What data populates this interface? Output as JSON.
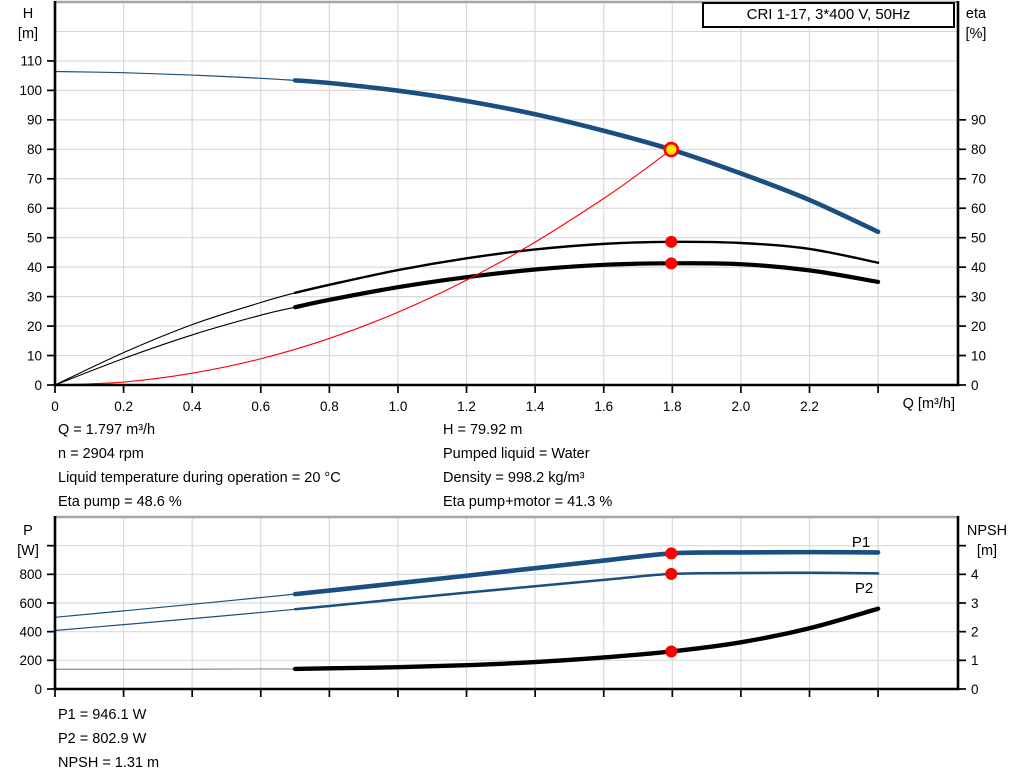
{
  "title_box": "CRI 1-17, 3*400 V, 50Hz",
  "colors": {
    "curve_blue": "#1B4F82",
    "label_blue": "#2B62A0",
    "red": "#FF0000",
    "yellow": "#FFE600",
    "black": "#000000",
    "grid": "#D9D9D9",
    "border_gray": "#A6A6A6",
    "thin_gray": "#8C8C8C"
  },
  "axis_titles": {
    "h1": "H",
    "h2": "[m]",
    "eta1": "eta",
    "eta2": "[%]",
    "q": "Q [m³/h]",
    "p1": "P",
    "p2": "[W]",
    "npsh1": "NPSH",
    "npsh2": "[m]"
  },
  "info": {
    "top_left": [
      "Q = 1.797 m³/h",
      "n = 2904 rpm",
      "Liquid temperature during operation = 20 °C",
      "Eta pump = 48.6 %"
    ],
    "top_right": [
      "H = 79.92 m",
      "Pumped liquid = Water",
      "Density = 998.2 kg/m³",
      "Eta pump+motor = 41.3 %"
    ],
    "bottom": [
      "P1 = 946.1 W",
      "P2 = 802.9 W",
      "NPSH = 1.31 m"
    ]
  },
  "chart_data": [
    {
      "type": "line",
      "title": "CRI 1-17, 3*400 V, 50Hz",
      "xlabel": "Q [m³/h]",
      "ylabel_left": "H [m]",
      "ylabel_right": "eta [%]",
      "xlim": [
        0,
        2.633
      ],
      "ylim_left": [
        0,
        130
      ],
      "ylim_right": [
        0,
        130
      ],
      "grid": true,
      "x_ticks": [
        0,
        0.2,
        0.4,
        0.6,
        0.8,
        1.0,
        1.2,
        1.4,
        1.6,
        1.8,
        2.0,
        2.2,
        2.4
      ],
      "x_tick_labels": [
        "0",
        "0.2",
        "0.4",
        "0.6",
        "0.8",
        "1.0",
        "1.2",
        "1.4",
        "1.6",
        "1.8",
        "2.0",
        "2.2",
        ""
      ],
      "grid_y": [
        10,
        20,
        30,
        40,
        50,
        60,
        70,
        80,
        90,
        100,
        110,
        120
      ],
      "y_ticks_left": {
        "values": [
          0,
          10,
          20,
          30,
          40,
          50,
          60,
          70,
          80,
          90,
          100,
          110
        ],
        "labels": [
          "0",
          "10",
          "20",
          "30",
          "40",
          "50",
          "60",
          "70",
          "80",
          "90",
          "100",
          "110"
        ]
      },
      "y_ticks_right": {
        "values": [
          0,
          10,
          20,
          30,
          40,
          50,
          60,
          70,
          80,
          90
        ],
        "labels": [
          "0",
          "10",
          "20",
          "30",
          "40",
          "50",
          "60",
          "70",
          "80",
          "90"
        ]
      },
      "series": [
        {
          "id": "h-curve",
          "name": "H",
          "axis": "left",
          "color": "#1B4F82",
          "thin_width": 1.2,
          "thick_width": 4.6,
          "thick_from": 0.7,
          "points": [
            [
              0,
              106.4
            ],
            [
              0.2,
              106.0
            ],
            [
              0.4,
              105.2
            ],
            [
              0.6,
              104.1
            ],
            [
              0.7,
              103.4
            ],
            [
              0.8,
              102.5
            ],
            [
              1.0,
              99.9
            ],
            [
              1.2,
              96.4
            ],
            [
              1.4,
              91.9
            ],
            [
              1.6,
              86.3
            ],
            [
              1.797,
              79.92
            ],
            [
              2.0,
              71.8
            ],
            [
              2.2,
              62.8
            ],
            [
              2.4,
              52.0
            ]
          ]
        },
        {
          "id": "eta-pump-curve",
          "name": "Eta pump",
          "axis": "left",
          "color": "#000000",
          "thin_width": 1.1,
          "thick_width": 2.4,
          "thick_from": 0.7,
          "points": [
            [
              0,
              0
            ],
            [
              0.2,
              11.0
            ],
            [
              0.4,
              20.5
            ],
            [
              0.6,
              28.0
            ],
            [
              0.7,
              31.3
            ],
            [
              0.8,
              34.0
            ],
            [
              1.0,
              39.0
            ],
            [
              1.2,
              43.0
            ],
            [
              1.4,
              46.0
            ],
            [
              1.6,
              47.9
            ],
            [
              1.797,
              48.6
            ],
            [
              2.0,
              48.2
            ],
            [
              2.2,
              46.2
            ],
            [
              2.4,
              41.5
            ]
          ]
        },
        {
          "id": "eta-pump-motor-curve",
          "name": "Eta pump+motor",
          "axis": "left",
          "color": "#000000",
          "thin_width": 1.1,
          "thick_width": 4.2,
          "thick_from": 0.7,
          "points": [
            [
              0,
              0
            ],
            [
              0.2,
              9.0
            ],
            [
              0.4,
              17.0
            ],
            [
              0.6,
              23.7
            ],
            [
              0.7,
              26.4
            ],
            [
              0.8,
              28.9
            ],
            [
              1.0,
              33.2
            ],
            [
              1.2,
              36.6
            ],
            [
              1.4,
              39.2
            ],
            [
              1.6,
              40.8
            ],
            [
              1.797,
              41.3
            ],
            [
              2.0,
              41.0
            ],
            [
              2.2,
              38.9
            ],
            [
              2.4,
              35.0
            ]
          ]
        },
        {
          "id": "system-curve",
          "name": "System curve",
          "axis": "left",
          "color": "#FF0000",
          "thin_width": 1.1,
          "thick_width": 1.1,
          "thick_from": null,
          "points": [
            [
              0,
              0
            ],
            [
              0.2,
              1.0
            ],
            [
              0.4,
              4.0
            ],
            [
              0.6,
              8.9
            ],
            [
              0.8,
              15.8
            ],
            [
              1.0,
              24.7
            ],
            [
              1.2,
              35.6
            ],
            [
              1.4,
              48.5
            ],
            [
              1.6,
              63.3
            ],
            [
              1.7,
              71.5
            ],
            [
              1.797,
              79.92
            ]
          ]
        }
      ],
      "markers": [
        {
          "id": "duty-point-marker",
          "x": 1.797,
          "y": 79.92,
          "axis": "left",
          "style": "duty"
        },
        {
          "id": "eta-pump-marker",
          "x": 1.797,
          "y": 48.6,
          "axis": "left",
          "style": "red"
        },
        {
          "id": "eta-pump-motor-marker",
          "x": 1.797,
          "y": 41.3,
          "axis": "left",
          "style": "red"
        }
      ]
    },
    {
      "type": "line",
      "title": "",
      "xlabel": "",
      "ylabel_left": "P [W]",
      "ylabel_right": "NPSH [m]",
      "xlim": [
        0,
        2.633
      ],
      "ylim_left": [
        0,
        1200
      ],
      "ylim_right": [
        0,
        6
      ],
      "grid": true,
      "x_ticks": [
        0,
        0.2,
        0.4,
        0.6,
        0.8,
        1.0,
        1.2,
        1.4,
        1.6,
        1.8,
        2.0,
        2.2,
        2.4
      ],
      "x_tick_labels": [
        "",
        "",
        "",
        "",
        "",
        "",
        "",
        "",
        "",
        "",
        "",
        "",
        ""
      ],
      "grid_y": [
        200,
        400,
        600,
        800,
        1000
      ],
      "y_ticks_left": {
        "values": [
          0,
          200,
          400,
          600,
          800,
          1000
        ],
        "labels": [
          "0",
          "200",
          "400",
          "600",
          "800",
          ""
        ]
      },
      "y_ticks_right": {
        "values": [
          0,
          1,
          2,
          3,
          4,
          5
        ],
        "labels": [
          "0",
          "1",
          "2",
          "3",
          "4",
          ""
        ]
      },
      "series": [
        {
          "id": "p1-curve",
          "name": "P1",
          "axis": "left",
          "color": "#1B4F82",
          "thin_width": 1.2,
          "thick_width": 4.6,
          "thick_from": 0.7,
          "points": [
            [
              0,
              500
            ],
            [
              0.2,
              545
            ],
            [
              0.4,
              591
            ],
            [
              0.6,
              638
            ],
            [
              0.7,
              662
            ],
            [
              0.8,
              687
            ],
            [
              1.0,
              738
            ],
            [
              1.2,
              790
            ],
            [
              1.4,
              843
            ],
            [
              1.6,
              896
            ],
            [
              1.797,
              946
            ],
            [
              2.0,
              953
            ],
            [
              2.2,
              955
            ],
            [
              2.4,
              953
            ]
          ]
        },
        {
          "id": "p2-curve",
          "name": "P2",
          "axis": "left",
          "color": "#1B4F82",
          "thin_width": 1.2,
          "thick_width": 2.5,
          "thick_from": 0.7,
          "points": [
            [
              0,
              408
            ],
            [
              0.2,
              449
            ],
            [
              0.4,
              491
            ],
            [
              0.6,
              534
            ],
            [
              0.7,
              556
            ],
            [
              0.8,
              579
            ],
            [
              1.0,
              626
            ],
            [
              1.2,
              672
            ],
            [
              1.4,
              717
            ],
            [
              1.6,
              761
            ],
            [
              1.797,
              803
            ],
            [
              2.0,
              809
            ],
            [
              2.2,
              811
            ],
            [
              2.4,
              807
            ]
          ]
        },
        {
          "id": "npsh-curve",
          "name": "NPSH",
          "axis": "right",
          "color": "#000000",
          "thin_color": "#8C8C8C",
          "thin_width": 1.2,
          "thick_width": 4.4,
          "thick_from": 0.7,
          "points": [
            [
              0,
              0.69
            ],
            [
              0.2,
              0.69
            ],
            [
              0.4,
              0.69
            ],
            [
              0.6,
              0.7
            ],
            [
              0.7,
              0.7
            ],
            [
              0.8,
              0.72
            ],
            [
              1.0,
              0.76
            ],
            [
              1.2,
              0.83
            ],
            [
              1.4,
              0.94
            ],
            [
              1.6,
              1.1
            ],
            [
              1.797,
              1.31
            ],
            [
              2.0,
              1.63
            ],
            [
              2.2,
              2.12
            ],
            [
              2.4,
              2.8
            ]
          ]
        }
      ],
      "markers": [
        {
          "id": "p1-marker",
          "x": 1.797,
          "y": 946.1,
          "axis": "left",
          "style": "red"
        },
        {
          "id": "p2-marker",
          "x": 1.797,
          "y": 802.9,
          "axis": "left",
          "style": "red"
        },
        {
          "id": "npsh-marker",
          "x": 1.797,
          "y": 1.31,
          "axis": "right",
          "style": "red"
        }
      ]
    }
  ]
}
